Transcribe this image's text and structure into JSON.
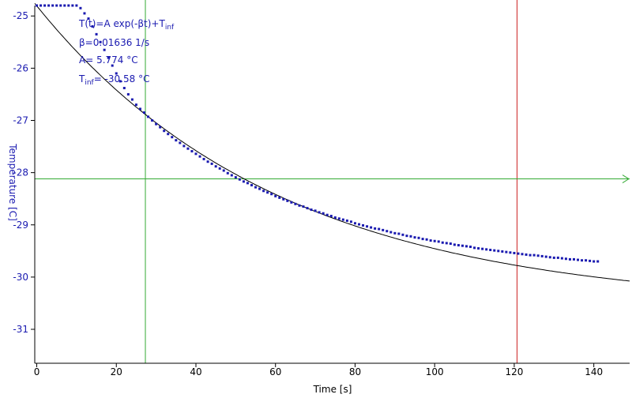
{
  "chart_data": {
    "type": "scatter",
    "title": "",
    "xlabel": "Time [s]",
    "ylabel": "Temperature [C]",
    "xlim": [
      -0.5,
      149
    ],
    "ylim": [
      -31.65,
      -24.8
    ],
    "x_ticks": [
      0,
      20,
      40,
      60,
      80,
      100,
      120,
      140
    ],
    "y_ticks": [
      -25,
      -26,
      -27,
      -28,
      -29,
      -30,
      -31
    ],
    "grid": false,
    "annotations": [
      {
        "id": "formula",
        "parts": [
          "T(t)=A exp(-βt)+T",
          "inf"
        ]
      },
      {
        "id": "beta",
        "text": "β=0.01636 1/s"
      },
      {
        "id": "amp",
        "text": "A= 5.774 °C"
      },
      {
        "id": "tinf",
        "parts": [
          "T",
          "inf",
          "= -30.58 °C"
        ]
      }
    ],
    "fit": {
      "A": 5.774,
      "beta": 0.01636,
      "T_inf": -30.58
    },
    "cursors": {
      "vertical_green_x": 27.3,
      "vertical_red_x": 120.7,
      "horizontal_green_y": -28.12
    },
    "colors": {
      "data": "#1a1ab0",
      "fit": "#000000",
      "cursor_green": "#33aa33",
      "cursor_red": "#cc2222",
      "axis": "#000000"
    },
    "series": [
      {
        "marker": "square",
        "x": [
          0,
          1,
          2,
          3,
          4,
          5,
          6,
          7,
          8,
          9,
          10,
          11,
          12,
          13,
          14,
          15,
          16,
          17,
          18,
          19,
          20,
          21,
          22,
          23,
          24,
          25,
          26,
          27,
          28,
          29,
          30,
          31,
          32,
          33,
          34,
          35,
          36,
          37,
          38,
          39,
          40,
          41,
          42,
          43,
          44,
          45,
          46,
          47,
          48,
          49,
          50,
          51,
          52,
          53,
          54,
          55,
          56,
          57,
          58,
          59,
          60,
          61,
          62,
          63,
          64,
          65,
          66,
          67,
          68,
          69,
          70,
          71,
          72,
          73,
          74,
          75,
          76,
          77,
          78,
          79,
          80,
          81,
          82,
          83,
          84,
          85,
          86,
          87,
          88,
          89,
          90,
          91,
          92,
          93,
          94,
          95,
          96,
          97,
          98,
          99,
          100,
          101,
          102,
          103,
          104,
          105,
          106,
          107,
          108,
          109,
          110,
          111,
          112,
          113,
          114,
          115,
          116,
          117,
          118,
          119,
          120,
          121,
          122,
          123,
          124,
          125,
          126,
          127,
          128,
          129,
          130,
          131,
          132,
          133,
          134,
          135,
          136,
          137,
          138,
          139,
          140,
          141
        ],
        "y": [
          -24.8,
          -24.8,
          -24.8,
          -24.8,
          -24.8,
          -24.8,
          -24.8,
          -24.8,
          -24.8,
          -24.8,
          -24.8,
          -24.85,
          -24.95,
          -25.05,
          -25.2,
          -25.35,
          -25.5,
          -25.65,
          -25.8,
          -25.95,
          -26.1,
          -26.25,
          -26.38,
          -26.5,
          -26.6,
          -26.7,
          -26.78,
          -26.85,
          -26.93,
          -27.0,
          -27.07,
          -27.13,
          -27.2,
          -27.26,
          -27.32,
          -27.38,
          -27.43,
          -27.49,
          -27.54,
          -27.59,
          -27.64,
          -27.69,
          -27.74,
          -27.79,
          -27.83,
          -27.88,
          -27.92,
          -27.96,
          -28.01,
          -28.05,
          -28.09,
          -28.13,
          -28.17,
          -28.2,
          -28.24,
          -28.28,
          -28.31,
          -28.35,
          -28.38,
          -28.41,
          -28.45,
          -28.48,
          -28.51,
          -28.54,
          -28.57,
          -28.6,
          -28.63,
          -28.65,
          -28.68,
          -28.71,
          -28.73,
          -28.76,
          -28.78,
          -28.81,
          -28.83,
          -28.86,
          -28.88,
          -28.9,
          -28.92,
          -28.94,
          -28.97,
          -28.99,
          -29.01,
          -29.03,
          -29.05,
          -29.07,
          -29.08,
          -29.1,
          -29.12,
          -29.14,
          -29.16,
          -29.17,
          -29.19,
          -29.21,
          -29.22,
          -29.24,
          -29.25,
          -29.27,
          -29.28,
          -29.3,
          -29.31,
          -29.32,
          -29.34,
          -29.35,
          -29.36,
          -29.38,
          -29.39,
          -29.4,
          -29.41,
          -29.42,
          -29.44,
          -29.45,
          -29.46,
          -29.47,
          -29.48,
          -29.49,
          -29.5,
          -29.51,
          -29.52,
          -29.53,
          -29.54,
          -29.55,
          -29.56,
          -29.57,
          -29.58,
          -29.58,
          -29.59,
          -29.6,
          -29.61,
          -29.62,
          -29.63,
          -29.63,
          -29.64,
          -29.65,
          -29.66,
          -29.66,
          -29.67,
          -29.68,
          -29.68,
          -29.69,
          -29.7,
          -29.7
        ]
      }
    ]
  }
}
